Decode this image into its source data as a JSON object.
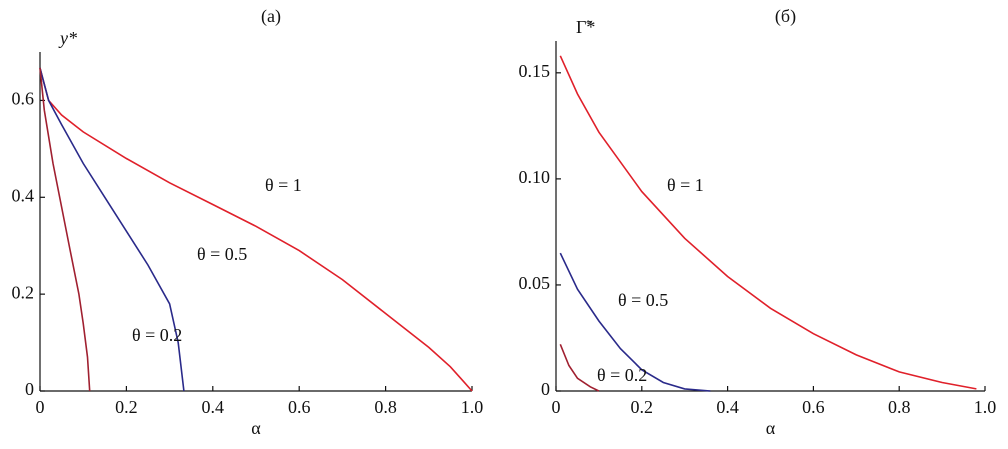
{
  "chart_data": [
    {
      "type": "line",
      "title": "(а)",
      "ylabel": "y*",
      "xlabel": "α",
      "xlim": [
        0,
        1
      ],
      "ylim": [
        0,
        0.7
      ],
      "xticks": [
        0,
        0.2,
        0.4,
        0.6,
        0.8,
        {
          "value": 1,
          "label": "1.0"
        }
      ],
      "yticks": [
        0,
        0.2,
        0.4,
        0.6
      ],
      "series": [
        {
          "name": "θ = 1",
          "color": "#e0202a",
          "x": [
            0,
            0.02,
            0.05,
            0.1,
            0.2,
            0.3,
            0.4,
            0.5,
            0.6,
            0.7,
            0.8,
            0.9,
            0.95,
            0.98,
            1.0
          ],
          "values": [
            0.667,
            0.6,
            0.57,
            0.535,
            0.48,
            0.43,
            0.385,
            0.34,
            0.29,
            0.23,
            0.16,
            0.09,
            0.05,
            0.02,
            0
          ]
        },
        {
          "name": "θ = 0.5",
          "color": "#2a2a8a",
          "x": [
            0,
            0.02,
            0.05,
            0.1,
            0.15,
            0.2,
            0.25,
            0.3,
            0.32,
            0.333
          ],
          "values": [
            0.667,
            0.6,
            0.55,
            0.47,
            0.4,
            0.33,
            0.26,
            0.18,
            0.1,
            0
          ]
        },
        {
          "name": "θ = 0.2",
          "color": "#a02030",
          "x": [
            0,
            0.01,
            0.03,
            0.05,
            0.07,
            0.09,
            0.1,
            0.11,
            0.115
          ],
          "values": [
            0.667,
            0.58,
            0.47,
            0.38,
            0.29,
            0.2,
            0.14,
            0.07,
            0
          ]
        }
      ]
    },
    {
      "type": "line",
      "title": "(б)",
      "ylabel": "Γ̃*",
      "xlabel": "α",
      "xlim": [
        0,
        1
      ],
      "ylim": [
        0,
        0.165
      ],
      "xticks": [
        0,
        0.2,
        0.4,
        0.6,
        0.8,
        {
          "value": 1,
          "label": "1.0"
        }
      ],
      "yticks": [
        0,
        0.05,
        {
          "value": 0.1,
          "label": "0.10"
        },
        0.15
      ],
      "series": [
        {
          "name": "θ = 1",
          "color": "#e0202a",
          "x": [
            0.01,
            0.05,
            0.1,
            0.2,
            0.3,
            0.4,
            0.5,
            0.6,
            0.7,
            0.8,
            0.9,
            0.98
          ],
          "values": [
            0.158,
            0.14,
            0.122,
            0.094,
            0.072,
            0.054,
            0.039,
            0.027,
            0.017,
            0.009,
            0.004,
            0.001
          ]
        },
        {
          "name": "θ = 0.5",
          "color": "#2a2a8a",
          "x": [
            0.01,
            0.05,
            0.1,
            0.15,
            0.2,
            0.25,
            0.3,
            0.36
          ],
          "values": [
            0.065,
            0.048,
            0.033,
            0.02,
            0.01,
            0.004,
            0.001,
            0
          ]
        },
        {
          "name": "θ = 0.2",
          "color": "#a02030",
          "x": [
            0.01,
            0.03,
            0.05,
            0.08,
            0.1
          ],
          "values": [
            0.022,
            0.012,
            0.006,
            0.002,
            0
          ]
        }
      ]
    }
  ]
}
